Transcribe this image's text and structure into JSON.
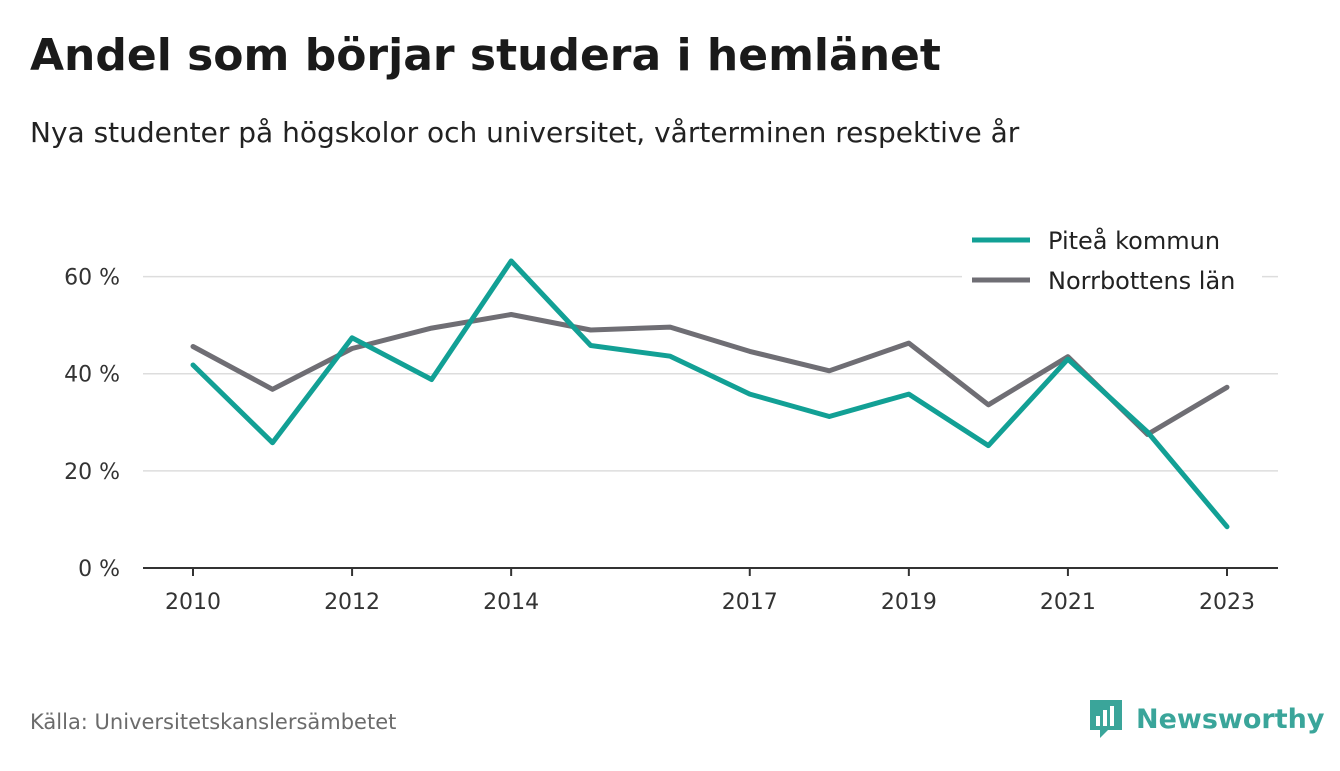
{
  "header": {
    "title": "Andel som börjar studera i hemlänet",
    "subtitle": "Nya studenter på högskolor och universitet, vårterminen respektive år"
  },
  "footer": {
    "source": "Källa: Universitetskanslersämbetet",
    "brand": "Newsworthy",
    "brand_icon": "bar-chart-badge-icon",
    "brand_color": "#3aa59a"
  },
  "chart_data": {
    "type": "line",
    "x": [
      2010,
      2011,
      2012,
      2013,
      2014,
      2015,
      2016,
      2017,
      2018,
      2019,
      2020,
      2021,
      2022,
      2023
    ],
    "tick_values": [
      2010,
      2012,
      2014,
      2017,
      2019,
      2021,
      2023
    ],
    "x_tick_labels": [
      "2010",
      "2012",
      "2014",
      "2017",
      "2019",
      "2021",
      "2023"
    ],
    "xlim": [
      2010,
      2023
    ],
    "ylim": [
      0,
      70
    ],
    "y_ticks": [
      0,
      20,
      40,
      60
    ],
    "y_tick_labels": [
      "0 %",
      "20 %",
      "40 %",
      "60 %"
    ],
    "grid": true,
    "legend_position": "top-right",
    "series": [
      {
        "name": "Piteå kommun",
        "color": "#12a095",
        "values": [
          41.8,
          25.8,
          47.4,
          38.8,
          63.2,
          45.8,
          43.6,
          35.8,
          31.2,
          35.8,
          25.2,
          43.0,
          28.0,
          8.5
        ]
      },
      {
        "name": "Norrbottens län",
        "color": "#6f6e74",
        "values": [
          45.6,
          36.8,
          45.2,
          49.4,
          52.2,
          49.0,
          49.6,
          44.6,
          40.6,
          46.3,
          33.6,
          43.5,
          27.5,
          37.2
        ]
      }
    ]
  }
}
